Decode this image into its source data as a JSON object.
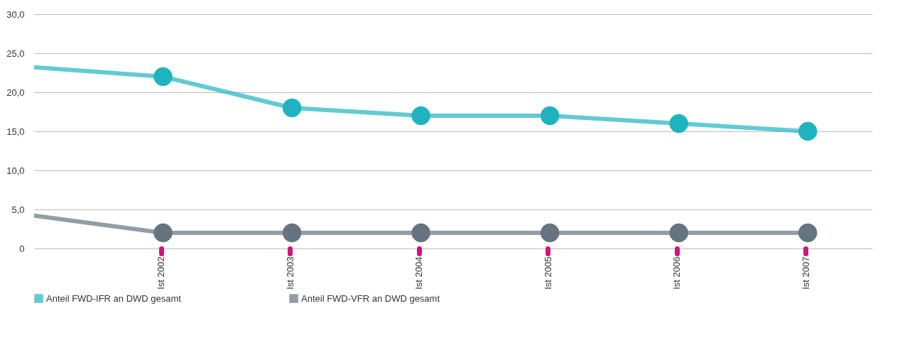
{
  "chart_data": {
    "type": "line",
    "categories": [
      null,
      "Ist 2002",
      "Ist 2003",
      "Ist 2004",
      "Ist 2005",
      "Ist 2006",
      "Ist 2007"
    ],
    "series": [
      {
        "name": "Anteil FWD-IFR an DWD gesamt",
        "color": "#1fb3c0",
        "values": [
          23.2,
          22,
          18,
          17,
          17,
          16,
          15
        ]
      },
      {
        "name": "Anteil FWD-VFR an DWD gesamt",
        "color": "#65747e",
        "values": [
          4.2,
          2,
          2,
          2,
          2,
          2,
          2
        ]
      }
    ],
    "ylim": [
      0,
      30
    ],
    "yticks": [
      0,
      {
        "value": 5,
        "label": "5,0"
      },
      {
        "value": 10,
        "label": "10,0"
      },
      {
        "value": 15,
        "label": "15,0"
      },
      {
        "value": 20,
        "label": "20,0"
      },
      {
        "value": 25,
        "label": "25,0"
      },
      {
        "value": 30,
        "label": "30,0"
      }
    ],
    "grid": "y",
    "legend": "bottom left",
    "marker": "circle",
    "line_style": "solid"
  }
}
